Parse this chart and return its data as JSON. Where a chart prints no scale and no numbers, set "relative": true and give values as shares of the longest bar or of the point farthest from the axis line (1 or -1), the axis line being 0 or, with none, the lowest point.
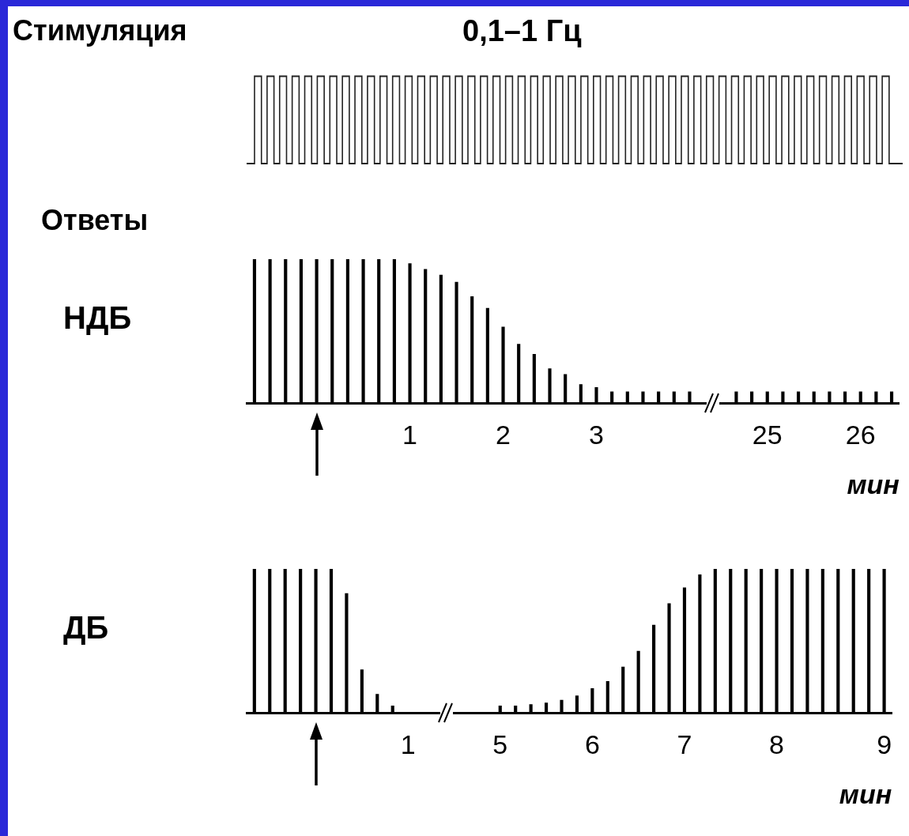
{
  "chart_data": [
    {
      "type": "other",
      "title": "Стимуляция",
      "subtitle": "0,1–1 Гц",
      "annotations": [
        "Ответы"
      ]
    },
    {
      "type": "bar",
      "title": "НДБ",
      "xlabel": "мин",
      "relative": true,
      "color": "#000000",
      "categories": [
        null,
        null,
        null,
        null,
        null,
        null,
        null,
        null,
        null,
        null,
        "1",
        null,
        null,
        null,
        null,
        null,
        "2",
        null,
        null,
        null,
        null,
        null,
        "3",
        null,
        null,
        null,
        null,
        null,
        null,
        null,
        null,
        null,
        null,
        "25",
        null,
        null,
        null,
        null,
        null,
        "26",
        null,
        null
      ],
      "values": [
        1,
        1,
        1,
        1,
        1,
        1,
        1,
        1,
        1,
        1,
        0.97,
        0.93,
        0.89,
        0.84,
        0.74,
        0.66,
        0.53,
        0.41,
        0.34,
        0.24,
        0.2,
        0.13,
        0.11,
        0.08,
        0.08,
        0.08,
        0.08,
        0.08,
        0.08,
        null,
        null,
        0.08,
        0.08,
        0.08,
        0.08,
        0.08,
        0.08,
        0.08,
        0.08,
        0.08,
        0.08,
        0.08
      ]
    },
    {
      "type": "bar",
      "title": "ДБ",
      "xlabel": "мин",
      "relative": true,
      "color": "#000000",
      "categories": [
        null,
        null,
        null,
        null,
        null,
        null,
        null,
        null,
        null,
        null,
        "1",
        null,
        null,
        null,
        null,
        null,
        "5",
        null,
        null,
        null,
        null,
        null,
        "6",
        null,
        null,
        null,
        null,
        null,
        "7",
        null,
        null,
        null,
        null,
        null,
        "8",
        null,
        null,
        null,
        null,
        null,
        null,
        "9"
      ],
      "values": [
        1,
        1,
        1,
        1,
        1,
        1,
        0.83,
        0.3,
        0.13,
        0.05,
        null,
        null,
        null,
        null,
        null,
        null,
        0.05,
        0.05,
        0.06,
        0.07,
        0.09,
        0.12,
        0.17,
        0.22,
        0.32,
        0.43,
        0.61,
        0.76,
        0.87,
        0.96,
        1,
        1,
        1,
        1,
        1,
        1,
        1,
        1,
        1,
        1,
        1,
        1
      ]
    }
  ]
}
